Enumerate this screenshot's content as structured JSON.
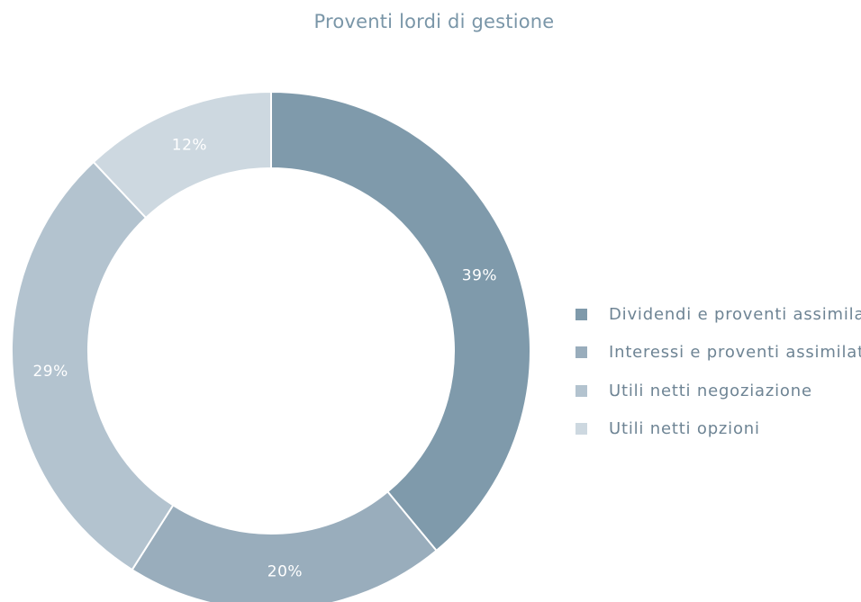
{
  "chart_data": {
    "type": "pie",
    "style": "donut",
    "title": "Proventi lordi di gestione",
    "categories": [
      "Dividendi e proventi assimilati",
      "Interessi e proventi assimilati",
      "Utili netti negoziazione",
      "Utili netti opzioni"
    ],
    "values": [
      39,
      20,
      29,
      12
    ],
    "labels": [
      "39%",
      "20%",
      "29%",
      "12%"
    ],
    "colors": [
      "#7f9aab",
      "#99adbc",
      "#b3c3cf",
      "#cdd8e0"
    ],
    "legend_position": "right"
  }
}
